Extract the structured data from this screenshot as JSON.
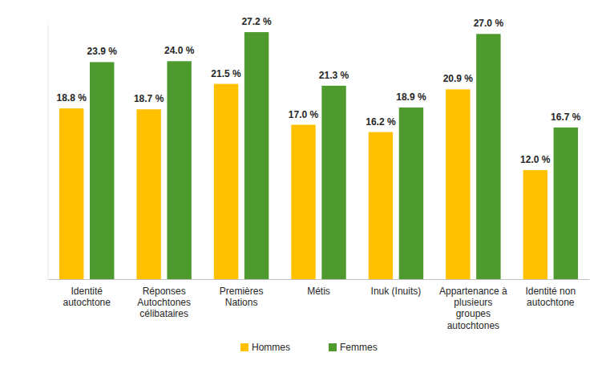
{
  "chart_data": {
    "type": "bar",
    "categories": [
      "Identité autochtone",
      "Réponses Autochtones célibataires",
      "Premières Nations",
      "Métis",
      "Inuk (Inuits)",
      "Appartenance à plusieurs groupes autochtones",
      "Identité non autochtone"
    ],
    "series": [
      {
        "name": "Hommes",
        "color": "#ffc000",
        "values": [
          18.8,
          18.7,
          21.5,
          17.0,
          16.2,
          20.9,
          12.0
        ],
        "value_labels": [
          "18.8 %",
          "18.7 %",
          "21.5 %",
          "17.0 %",
          "16.2 %",
          "20.9 %",
          "12.0 %"
        ]
      },
      {
        "name": "Femmes",
        "color": "#4e9a2e",
        "values": [
          23.9,
          24.0,
          27.2,
          21.3,
          18.9,
          27.0,
          16.7
        ],
        "value_labels": [
          "23.9 %",
          "24.0 %",
          "27.2 %",
          "21.3 %",
          "18.9 %",
          "27.0 %",
          "16.7 %"
        ]
      }
    ],
    "ylim": [
      0,
      28
    ],
    "data_labels": true,
    "tick_labels": "x",
    "grid": false,
    "legend": "bottom"
  }
}
